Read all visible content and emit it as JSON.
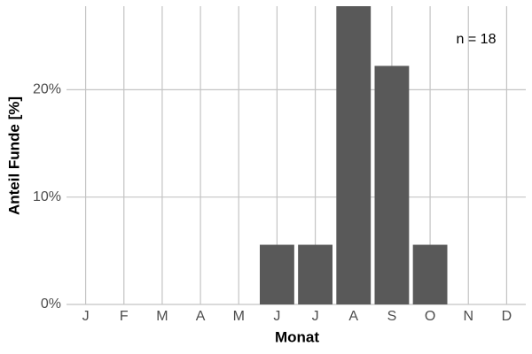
{
  "chart_data": {
    "type": "bar",
    "categories": [
      "J",
      "F",
      "M",
      "A",
      "M",
      "J",
      "J",
      "A",
      "S",
      "O",
      "N",
      "D"
    ],
    "values": [
      0,
      0,
      0,
      0,
      0,
      5.56,
      5.56,
      27.78,
      22.22,
      5.56,
      0,
      0
    ],
    "color": "#595959",
    "x_label": "Monat",
    "y_label": "Anteil Funde [%]",
    "annotation": "n = 18",
    "ylim": [
      0,
      27.78
    ],
    "yticks": [
      {
        "value": 0,
        "label": "0%"
      },
      {
        "value": 10,
        "label": "10%"
      },
      {
        "value": 20,
        "label": "20%"
      }
    ],
    "grid": true
  }
}
